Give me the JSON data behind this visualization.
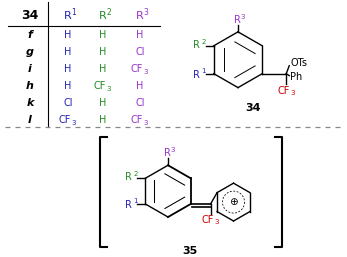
{
  "bg_color": "#ffffff",
  "table_rows": [
    [
      "f",
      "H",
      "H",
      "H"
    ],
    [
      "g",
      "H",
      "H",
      "Cl"
    ],
    [
      "i",
      "H",
      "H",
      "CF3"
    ],
    [
      "h",
      "H",
      "CF3",
      "H"
    ],
    [
      "k",
      "Cl",
      "H",
      "Cl"
    ],
    [
      "l",
      "CF3",
      "H",
      "CF3"
    ]
  ],
  "color_r1": "#2222bb",
  "color_r2": "#228B22",
  "color_r3": "#9933cc",
  "color_cf3": "#cc0000",
  "color_black": "#000000",
  "color_gray": "#888888"
}
